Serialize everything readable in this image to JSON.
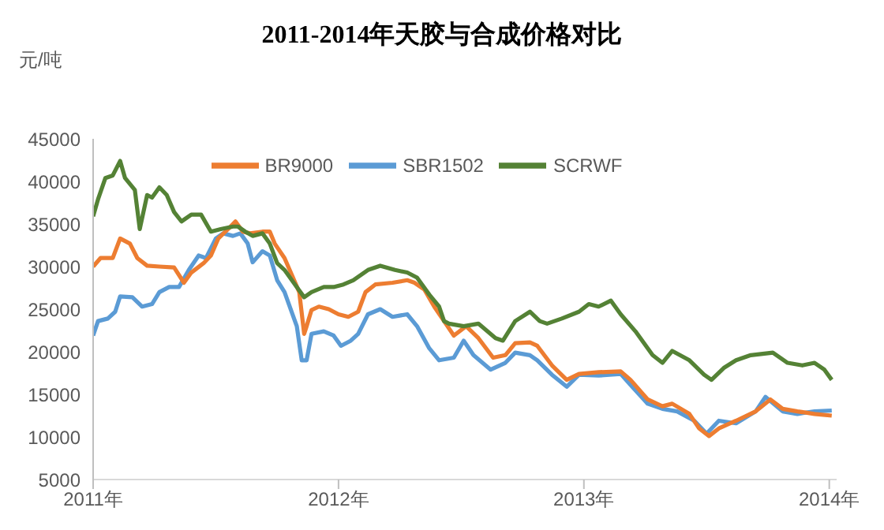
{
  "chart_data": {
    "type": "line",
    "title": "2011-2014年天胶与合成价格对比",
    "ylabel": "元/吨",
    "xlim": [
      2011,
      2014.03
    ],
    "xticks": [
      {
        "value": 2011,
        "label": "2011年"
      },
      {
        "value": 2012,
        "label": "2012年"
      },
      {
        "value": 2013,
        "label": "2013年"
      },
      {
        "value": 2014,
        "label": "2014年"
      }
    ],
    "ylim": [
      5000,
      45000
    ],
    "yticks": [
      5000,
      10000,
      15000,
      20000,
      25000,
      30000,
      35000,
      40000,
      45000
    ],
    "grid": false,
    "legend": "top",
    "marker": "none",
    "line_style": "solid",
    "series": [
      {
        "name": "SBR1502",
        "color": "#5b9bd5",
        "x": [
          2011.0,
          2011.02,
          2011.06,
          2011.09,
          2011.11,
          2011.16,
          2011.2,
          2011.24,
          2011.27,
          2011.31,
          2011.35,
          2011.39,
          2011.43,
          2011.46,
          2011.5,
          2011.53,
          2011.57,
          2011.6,
          2011.63,
          2011.65,
          2011.69,
          2011.72,
          2011.75,
          2011.78,
          2011.83,
          2011.85,
          2011.87,
          2011.89,
          2011.94,
          2011.98,
          2012.01,
          2012.05,
          2012.08,
          2012.12,
          2012.17,
          2012.22,
          2012.28,
          2012.32,
          2012.37,
          2012.41,
          2012.47,
          2012.51,
          2012.55,
          2012.62,
          2012.68,
          2012.72,
          2012.78,
          2012.81,
          2012.87,
          2012.93,
          2012.98,
          2013.06,
          2013.15,
          2013.19,
          2013.26,
          2013.32,
          2013.38,
          2013.45,
          2013.5,
          2013.55,
          2013.62,
          2013.7,
          2013.74,
          2013.81,
          2013.87,
          2013.94,
          2014.01
        ],
        "values": [
          21900,
          23600,
          23900,
          24700,
          26500,
          26400,
          25300,
          25600,
          27000,
          27600,
          27600,
          29600,
          31300,
          31000,
          33300,
          33900,
          33600,
          33900,
          32700,
          30500,
          31800,
          31300,
          28400,
          27000,
          23000,
          19000,
          19000,
          22100,
          22400,
          21900,
          20700,
          21300,
          22100,
          24400,
          25000,
          24100,
          24400,
          23000,
          20400,
          19000,
          19300,
          21300,
          19600,
          17900,
          18700,
          19900,
          19600,
          19000,
          17300,
          15900,
          17300,
          17200,
          17400,
          16100,
          13900,
          13300,
          13000,
          11900,
          10400,
          11900,
          11600,
          13000,
          14700,
          13000,
          12700,
          13000,
          13100
        ]
      },
      {
        "name": "BR9000",
        "color": "#ed7d31",
        "x": [
          2011.0,
          2011.03,
          2011.08,
          2011.11,
          2011.15,
          2011.18,
          2011.22,
          2011.27,
          2011.33,
          2011.37,
          2011.4,
          2011.45,
          2011.48,
          2011.51,
          2011.55,
          2011.58,
          2011.61,
          2011.64,
          2011.69,
          2011.72,
          2011.74,
          2011.78,
          2011.81,
          2011.84,
          2011.86,
          2011.87,
          2011.89,
          2011.92,
          2011.96,
          2012.0,
          2012.04,
          2012.08,
          2012.11,
          2012.15,
          2012.22,
          2012.28,
          2012.31,
          2012.35,
          2012.39,
          2012.43,
          2012.47,
          2012.52,
          2012.57,
          2012.63,
          2012.68,
          2012.72,
          2012.78,
          2012.81,
          2012.87,
          2012.93,
          2012.98,
          2013.06,
          2013.15,
          2013.19,
          2013.26,
          2013.32,
          2013.36,
          2013.43,
          2013.47,
          2013.51,
          2013.55,
          2013.62,
          2013.7,
          2013.76,
          2013.81,
          2013.87,
          2013.94,
          2014.01
        ],
        "values": [
          30000,
          31000,
          31000,
          33300,
          32700,
          31000,
          30100,
          30000,
          29900,
          28100,
          29300,
          30400,
          31300,
          33300,
          34400,
          35300,
          34100,
          33900,
          34100,
          34100,
          32700,
          31000,
          29000,
          27000,
          22100,
          23000,
          24900,
          25300,
          25000,
          24400,
          24100,
          24700,
          27000,
          27900,
          28100,
          28400,
          28100,
          27300,
          25300,
          23600,
          21900,
          23000,
          21600,
          19300,
          19600,
          21000,
          21100,
          20700,
          18400,
          16700,
          17400,
          17600,
          17700,
          16700,
          14400,
          13600,
          13900,
          12700,
          11000,
          10100,
          11000,
          11900,
          13000,
          14400,
          13300,
          13000,
          12700,
          12500
        ]
      },
      {
        "name": "SCRWF",
        "color": "#548235",
        "x": [
          2011.0,
          2011.02,
          2011.05,
          2011.08,
          2011.11,
          2011.13,
          2011.17,
          2011.19,
          2011.22,
          2011.24,
          2011.27,
          2011.3,
          2011.33,
          2011.36,
          2011.4,
          2011.44,
          2011.48,
          2011.52,
          2011.57,
          2011.59,
          2011.62,
          2011.65,
          2011.69,
          2011.72,
          2011.75,
          2011.78,
          2011.83,
          2011.86,
          2011.89,
          2011.94,
          2011.98,
          2012.02,
          2012.06,
          2012.12,
          2012.17,
          2012.23,
          2012.28,
          2012.32,
          2012.37,
          2012.41,
          2012.43,
          2012.45,
          2012.51,
          2012.57,
          2012.64,
          2012.67,
          2012.72,
          2012.78,
          2012.82,
          2012.85,
          2012.91,
          2012.98,
          2013.02,
          2013.06,
          2013.11,
          2013.15,
          2013.21,
          2013.28,
          2013.32,
          2013.36,
          2013.43,
          2013.49,
          2013.52,
          2013.57,
          2013.62,
          2013.68,
          2013.77,
          2013.83,
          2013.89,
          2013.94,
          2013.98,
          2014.01
        ],
        "values": [
          35900,
          37900,
          40400,
          40700,
          42400,
          40400,
          39000,
          34400,
          38400,
          38100,
          39300,
          38400,
          36400,
          35300,
          36100,
          36100,
          34100,
          34400,
          34700,
          34700,
          34100,
          33600,
          33900,
          32700,
          30400,
          29600,
          27600,
          26400,
          27000,
          27600,
          27600,
          27900,
          28400,
          29600,
          30100,
          29600,
          29300,
          28700,
          26700,
          25300,
          23600,
          23300,
          23000,
          23300,
          21600,
          21300,
          23600,
          24700,
          23600,
          23300,
          23900,
          24700,
          25600,
          25300,
          26000,
          24400,
          22400,
          19600,
          18700,
          20100,
          19000,
          17300,
          16700,
          18100,
          19000,
          19600,
          19900,
          18700,
          18400,
          18700,
          17900,
          16700
        ]
      }
    ]
  }
}
